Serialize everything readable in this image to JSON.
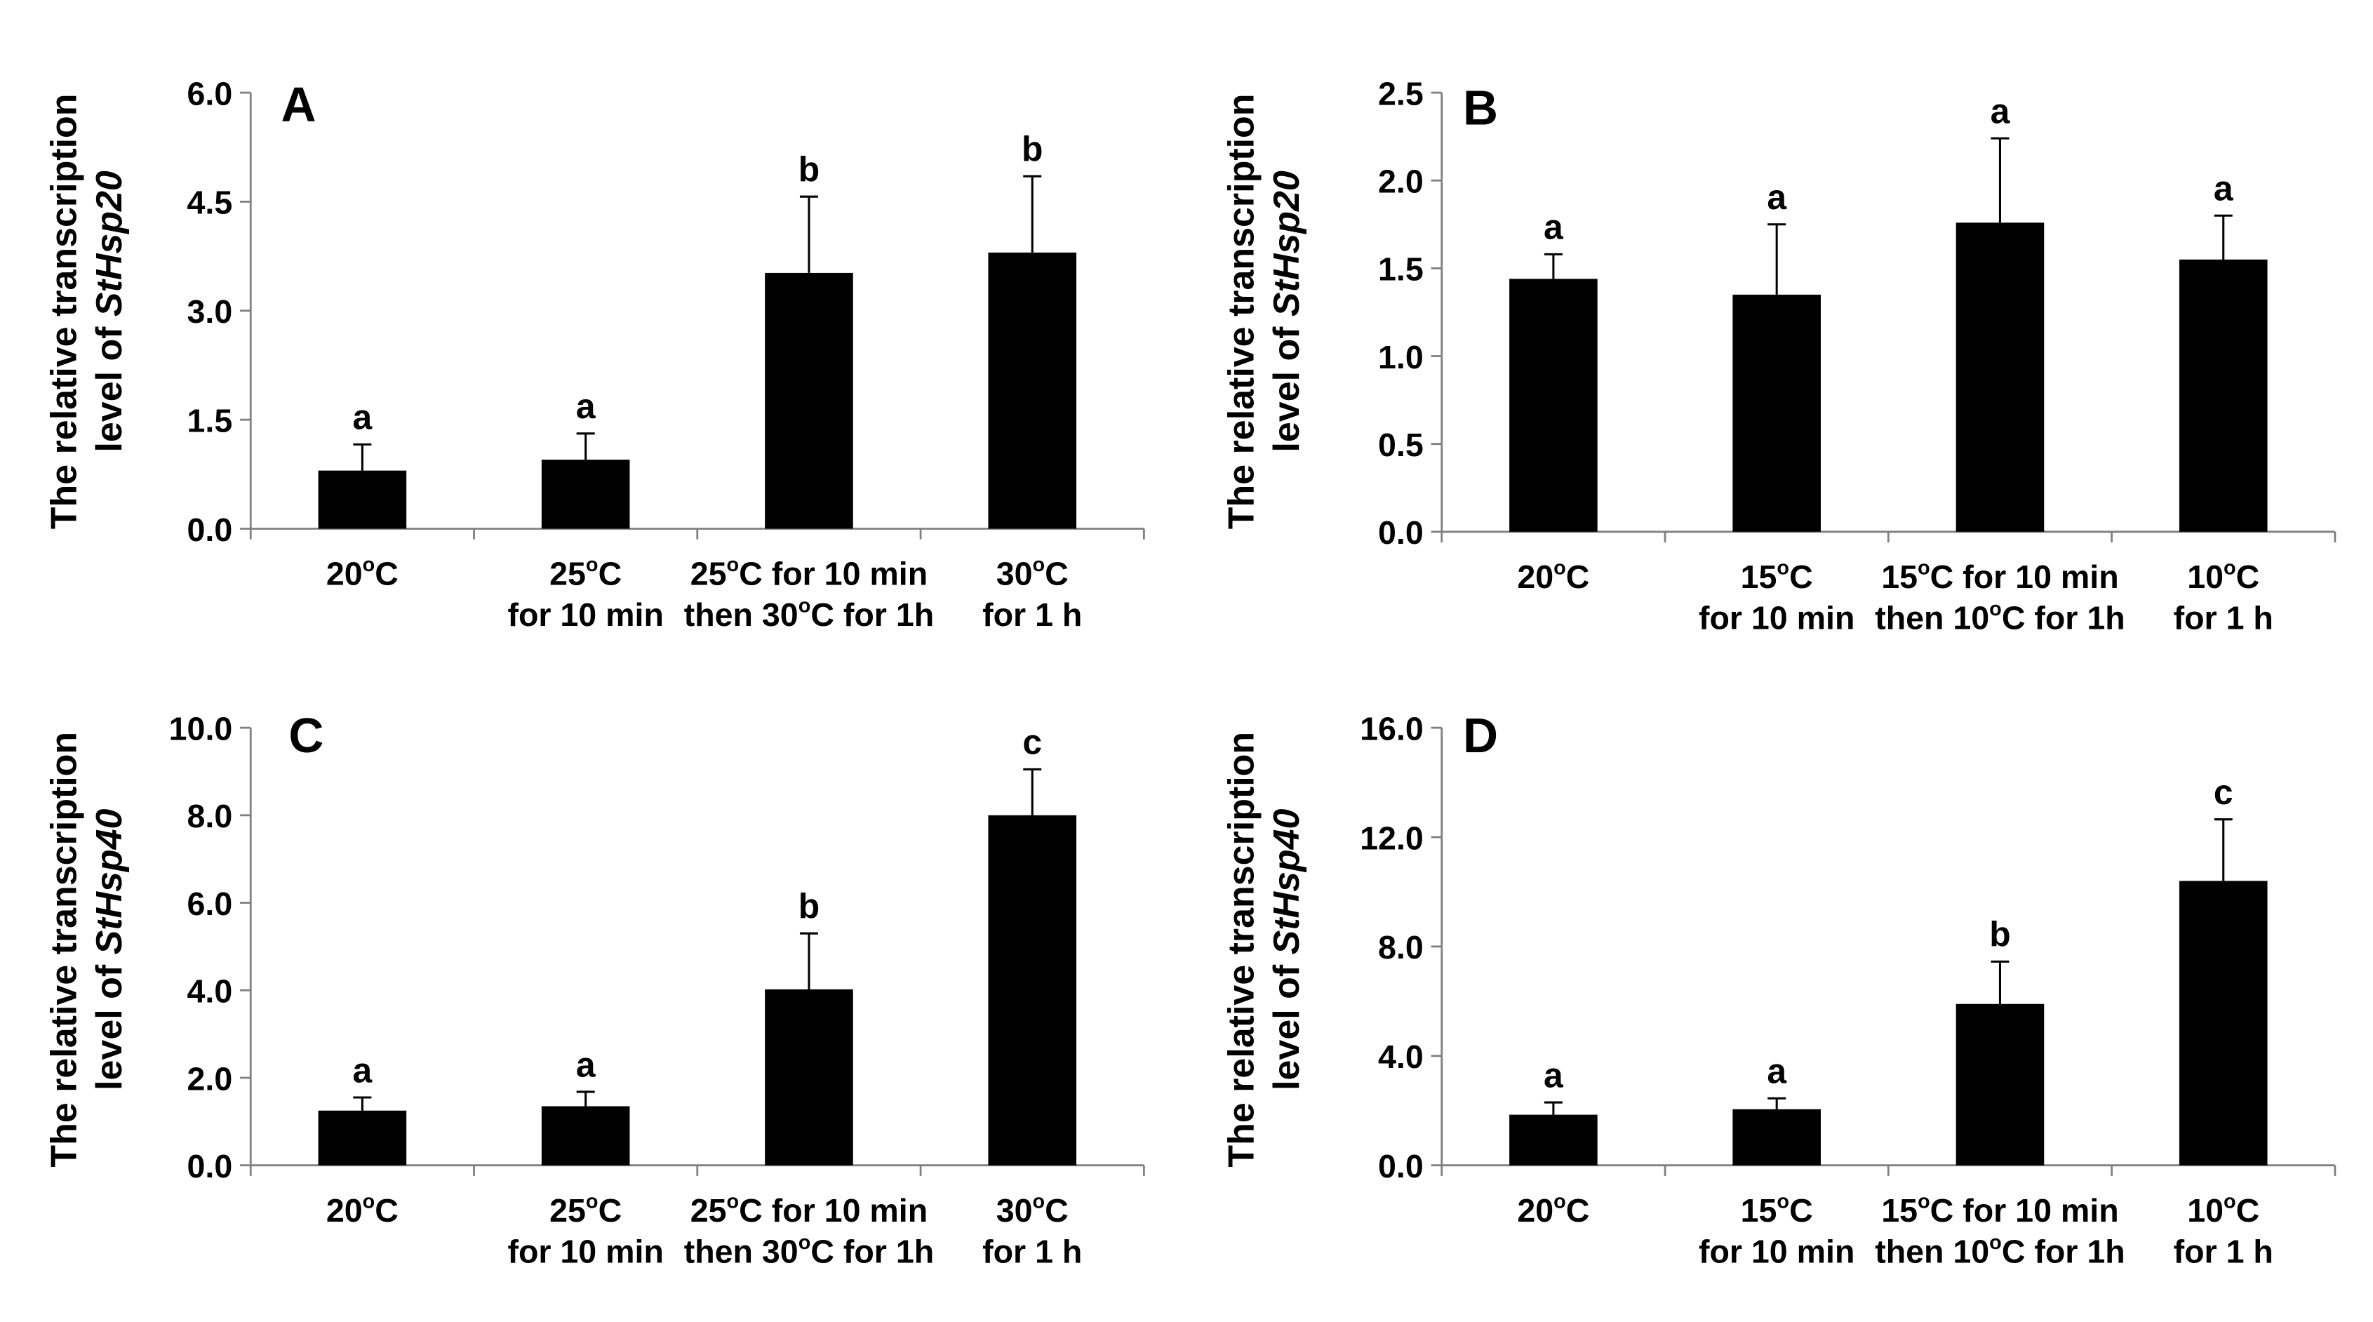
{
  "chart_data": [
    {
      "type": "bar",
      "panel_label": "A",
      "ylabel_line1": "The relative transcription",
      "ylabel_line2_prefix": "level of ",
      "ylabel_gene": "StHsp20",
      "ylim": [
        0,
        6.0
      ],
      "yticks": [
        "0.0",
        "1.5",
        "3.0",
        "4.5",
        "6.0"
      ],
      "categories": [
        {
          "line1_pre": "20",
          "line1_sup": "o",
          "line1_post": "C",
          "line2_pre": "",
          "line2_sup": "",
          "line2_post": ""
        },
        {
          "line1_pre": "25",
          "line1_sup": "o",
          "line1_post": "C",
          "line2_pre": "for 10 min",
          "line2_sup": "",
          "line2_post": ""
        },
        {
          "line1_pre": "25",
          "line1_sup": "o",
          "line1_post": "C for 10 min",
          "line2_pre": "then 30",
          "line2_sup": "o",
          "line2_post": "C for 1h"
        },
        {
          "line1_pre": "30",
          "line1_sup": "o",
          "line1_post": "C",
          "line2_pre": "for 1 h",
          "line2_sup": "",
          "line2_post": ""
        }
      ],
      "values": [
        0.8,
        0.95,
        3.52,
        3.8
      ],
      "errors": [
        0.36,
        0.36,
        1.05,
        1.05
      ],
      "significance": [
        "a",
        "a",
        "b",
        "b"
      ]
    },
    {
      "type": "bar",
      "panel_label": "B",
      "ylabel_line1": "The relative transcription",
      "ylabel_line2_prefix": "level of ",
      "ylabel_gene": "StHsp20",
      "ylim": [
        0,
        2.5
      ],
      "yticks": [
        "0.0",
        "0.5",
        "1.0",
        "1.5",
        "2.0",
        "2.5"
      ],
      "categories": [
        {
          "line1_pre": "20",
          "line1_sup": "o",
          "line1_post": "C",
          "line2_pre": "",
          "line2_sup": "",
          "line2_post": ""
        },
        {
          "line1_pre": "15",
          "line1_sup": "o",
          "line1_post": "C",
          "line2_pre": "for 10 min",
          "line2_sup": "",
          "line2_post": ""
        },
        {
          "line1_pre": "15",
          "line1_sup": "o",
          "line1_post": "C for 10 min",
          "line2_pre": "then 10",
          "line2_sup": "o",
          "line2_post": "C for 1h"
        },
        {
          "line1_pre": "10",
          "line1_sup": "o",
          "line1_post": "C",
          "line2_pre": "for 1 h",
          "line2_sup": "",
          "line2_post": ""
        }
      ],
      "values": [
        1.44,
        1.35,
        1.76,
        1.55
      ],
      "errors": [
        0.14,
        0.4,
        0.48,
        0.25
      ],
      "significance": [
        "a",
        "a",
        "a",
        "a"
      ]
    },
    {
      "type": "bar",
      "panel_label": "C",
      "ylabel_line1": "The relative transcription",
      "ylabel_line2_prefix": "level of ",
      "ylabel_gene": "StHsp40",
      "ylim": [
        0,
        10.0
      ],
      "yticks": [
        "0.0",
        "2.0",
        "4.0",
        "6.0",
        "8.0",
        "10.0"
      ],
      "categories": [
        {
          "line1_pre": "20",
          "line1_sup": "o",
          "line1_post": "C",
          "line2_pre": "",
          "line2_sup": "",
          "line2_post": ""
        },
        {
          "line1_pre": "25",
          "line1_sup": "o",
          "line1_post": "C",
          "line2_pre": "for 10 min",
          "line2_sup": "",
          "line2_post": ""
        },
        {
          "line1_pre": "25",
          "line1_sup": "o",
          "line1_post": "C for 10 min",
          "line2_pre": "then 30",
          "line2_sup": "o",
          "line2_post": "C for 1h"
        },
        {
          "line1_pre": "30",
          "line1_sup": "o",
          "line1_post": "C",
          "line2_pre": "for 1 h",
          "line2_sup": "",
          "line2_post": ""
        }
      ],
      "values": [
        1.25,
        1.35,
        4.02,
        8.0
      ],
      "errors": [
        0.3,
        0.33,
        1.28,
        1.05
      ],
      "significance": [
        "a",
        "a",
        "b",
        "c"
      ]
    },
    {
      "type": "bar",
      "panel_label": "D",
      "ylabel_line1": "The relative transcription",
      "ylabel_line2_prefix": "level of ",
      "ylabel_gene": "StHsp40",
      "ylim": [
        0,
        16.0
      ],
      "yticks": [
        "0.0",
        "4.0",
        "8.0",
        "12.0",
        "16.0"
      ],
      "categories": [
        {
          "line1_pre": "20",
          "line1_sup": "o",
          "line1_post": "C",
          "line2_pre": "",
          "line2_sup": "",
          "line2_post": ""
        },
        {
          "line1_pre": "15",
          "line1_sup": "o",
          "line1_post": "C",
          "line2_pre": "for 10 min",
          "line2_sup": "",
          "line2_post": ""
        },
        {
          "line1_pre": "15",
          "line1_sup": "o",
          "line1_post": "C for 10 min",
          "line2_pre": "then 10",
          "line2_sup": "o",
          "line2_post": "C for 1h"
        },
        {
          "line1_pre": "10",
          "line1_sup": "o",
          "line1_post": "C",
          "line2_pre": "for 1 h",
          "line2_sup": "",
          "line2_post": ""
        }
      ],
      "values": [
        1.85,
        2.05,
        5.9,
        10.4
      ],
      "errors": [
        0.45,
        0.4,
        1.55,
        2.25
      ],
      "significance": [
        "a",
        "a",
        "b",
        "c"
      ]
    }
  ]
}
